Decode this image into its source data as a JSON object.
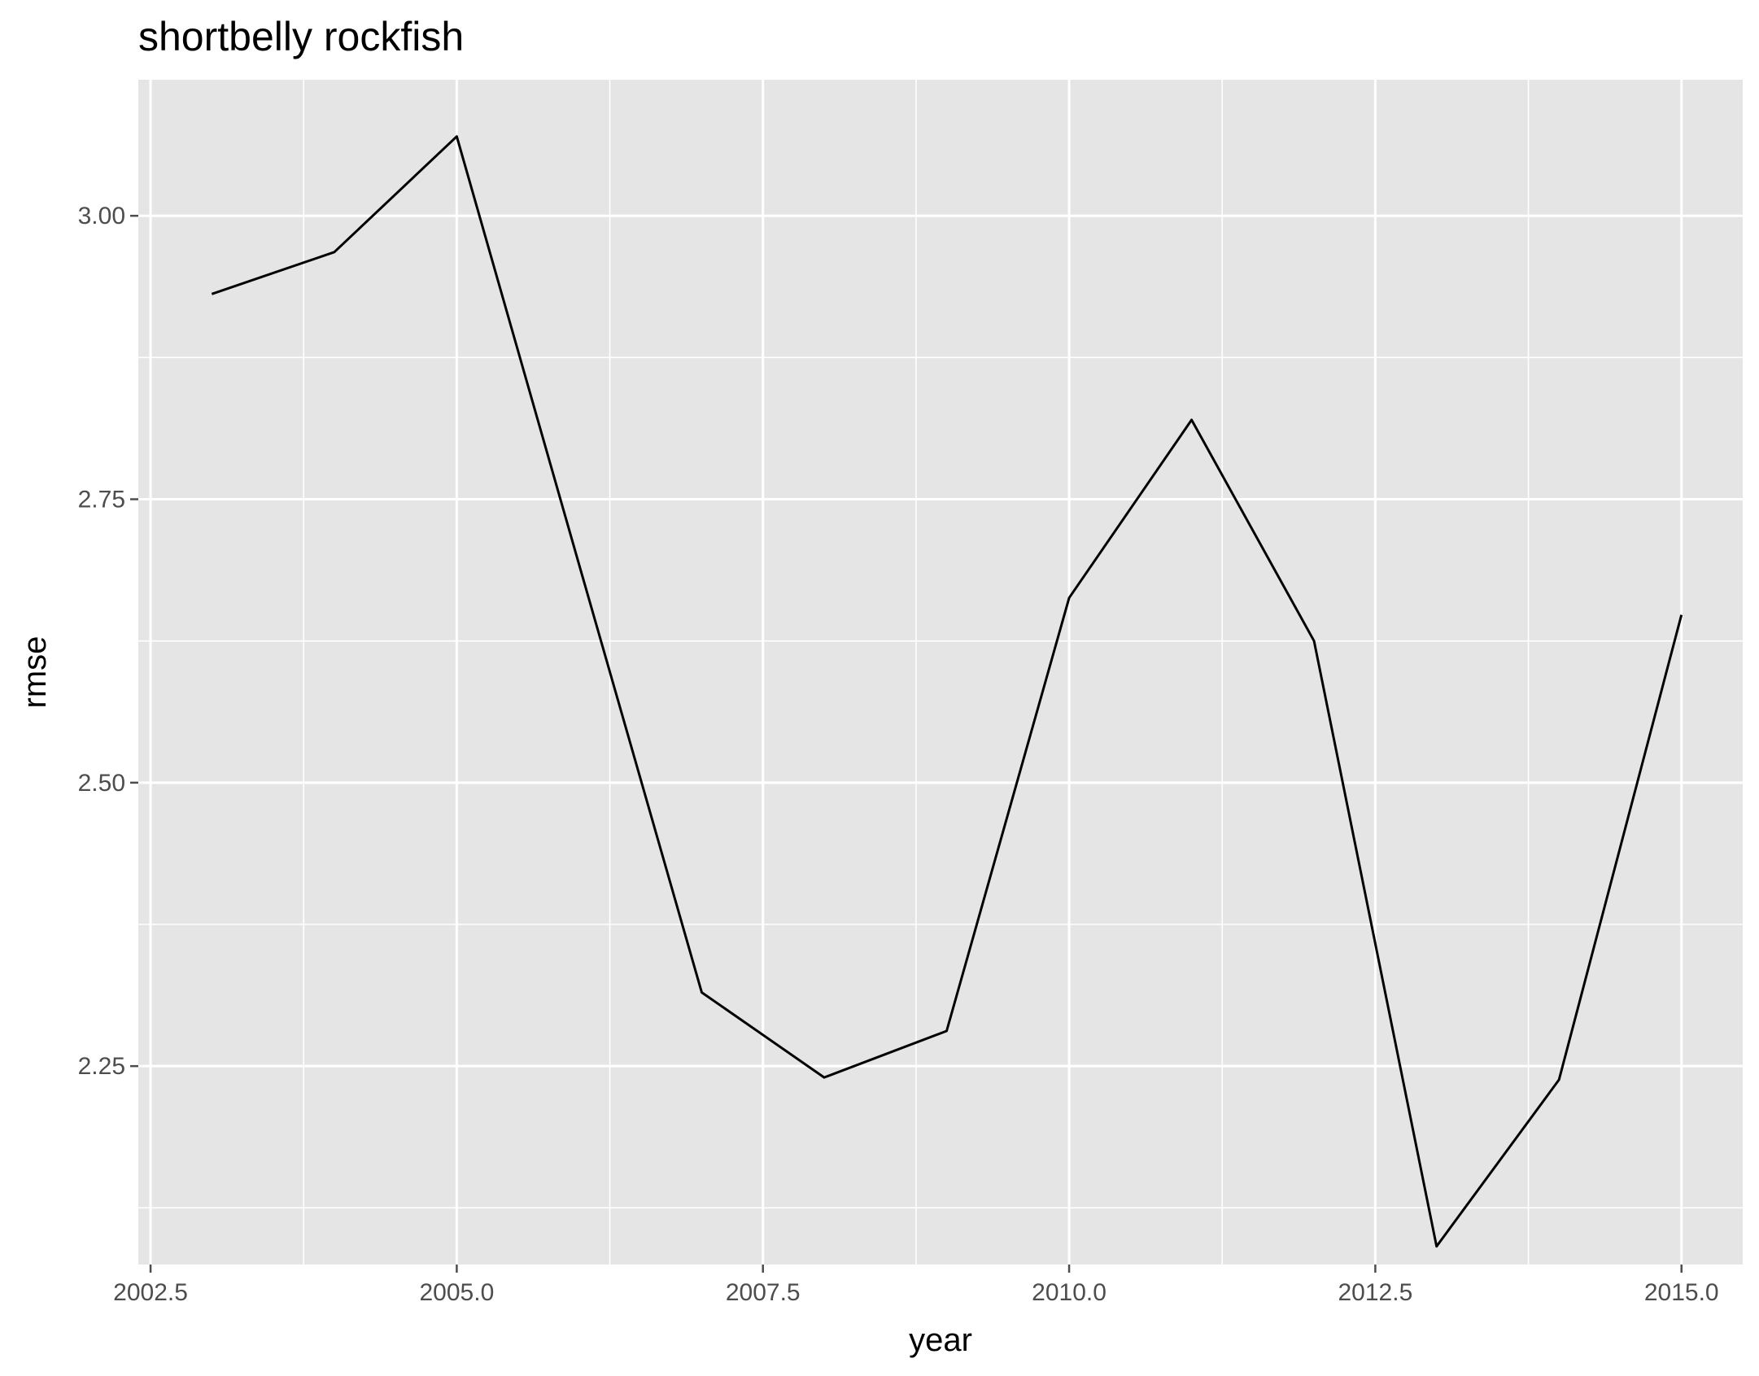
{
  "chart_data": {
    "type": "line",
    "title": "shortbelly rockfish",
    "xlabel": "year",
    "ylabel": "rmse",
    "xlim": [
      2002.4,
      2015.5
    ],
    "ylim": [
      2.075,
      3.12
    ],
    "x_ticks": [
      2002.5,
      2005.0,
      2007.5,
      2010.0,
      2012.5,
      2015.0
    ],
    "x_tick_labels": [
      "2002.5",
      "2005.0",
      "2007.5",
      "2010.0",
      "2012.5",
      "2015.0"
    ],
    "y_ticks": [
      2.25,
      2.5,
      2.75,
      3.0
    ],
    "y_tick_labels": [
      "2.25",
      "2.50",
      "2.75",
      "3.00"
    ],
    "grid": true,
    "legend": "none",
    "colors": {
      "panel": "#e5e5e5",
      "grid": "#ffffff",
      "line": "#000000",
      "ticks": "#4d4d4d"
    },
    "series": [
      {
        "x": [
          2003,
          2004,
          2005,
          2006,
          2007,
          2008,
          2009,
          2010,
          2011,
          2012,
          2013,
          2014,
          2015
        ],
        "y": [
          2.931,
          2.968,
          3.07,
          2.692,
          2.315,
          2.24,
          2.281,
          2.663,
          2.82,
          2.625,
          2.091,
          2.238,
          2.648
        ]
      }
    ]
  }
}
